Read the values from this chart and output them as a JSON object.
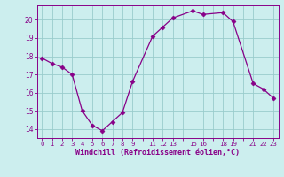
{
  "x": [
    0,
    1,
    2,
    3,
    4,
    5,
    6,
    7,
    8,
    9,
    11,
    12,
    13,
    15,
    16,
    18,
    19,
    21,
    22,
    23
  ],
  "y": [
    17.9,
    17.6,
    17.4,
    17.0,
    15.0,
    14.2,
    13.9,
    14.4,
    14.9,
    16.6,
    19.1,
    19.6,
    20.1,
    20.5,
    20.3,
    20.4,
    19.9,
    16.5,
    16.2,
    15.7
  ],
  "line_color": "#880088",
  "marker": "D",
  "marker_size": 2.5,
  "bg_color": "#cceeee",
  "grid_color": "#99cccc",
  "xlabel": "Windchill (Refroidissement éolien,°C)",
  "xlabel_color": "#880088",
  "tick_color": "#880088",
  "ylim": [
    13.5,
    20.8
  ],
  "xlim": [
    -0.5,
    23.5
  ],
  "yticks": [
    14,
    15,
    16,
    17,
    18,
    19,
    20
  ],
  "xtick_positions": [
    0,
    1,
    2,
    3,
    4,
    5,
    6,
    7,
    8,
    9,
    10,
    11,
    12,
    13,
    14,
    15,
    16,
    17,
    18,
    19,
    20,
    21,
    22,
    23
  ],
  "xtick_labels": [
    "0",
    "1",
    "2",
    "3",
    "4",
    "5",
    "6",
    "7",
    "8",
    "9",
    "",
    "11",
    "12",
    "13",
    "",
    "15",
    "16",
    "",
    "18",
    "19",
    "",
    "21",
    "22",
    "23"
  ]
}
